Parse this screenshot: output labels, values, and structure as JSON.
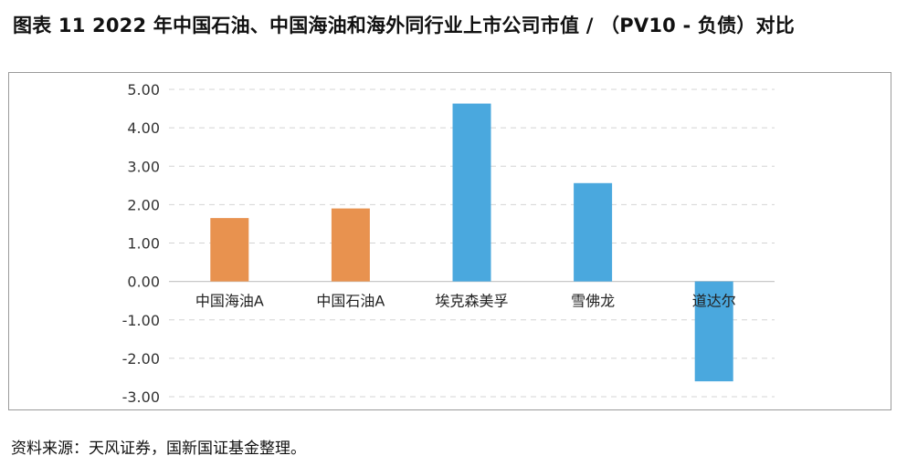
{
  "figure": {
    "title": "图表 11  2022 年中国石油、中国海油和海外同行业上市公司市值 / （PV10 - 负债）对比",
    "source": "资料来源：天风证券，国新国证基金整理。"
  },
  "chart_data": {
    "type": "bar",
    "categories": [
      "中国海油A",
      "中国石油A",
      "埃克森美孚",
      "雪佛龙",
      "道达尔"
    ],
    "values": [
      1.65,
      1.9,
      4.63,
      2.56,
      -2.6
    ],
    "bar_colors": [
      "#E8924F",
      "#E8924F",
      "#4AA8DE",
      "#4AA8DE",
      "#4AA8DE"
    ],
    "ylim": [
      -3.0,
      5.0
    ],
    "yticks": [
      "5.00",
      "4.00",
      "3.00",
      "2.00",
      "1.00",
      "0.00",
      "-1.00",
      "-2.00",
      "-3.00"
    ],
    "grid": true,
    "xlabel": "",
    "ylabel": ""
  }
}
